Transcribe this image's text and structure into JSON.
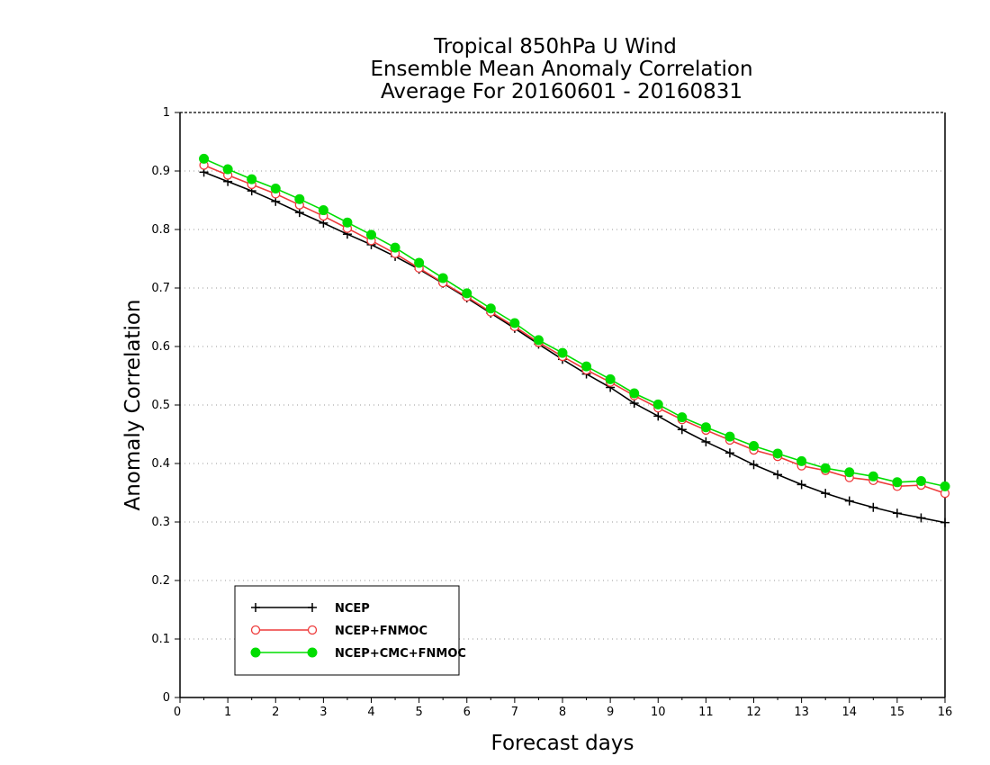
{
  "chart_data": {
    "type": "line",
    "title": [
      "Tropical 850hPa U Wind",
      "Ensemble Mean Anomaly Correlation",
      "Average For 20160601 - 20160831"
    ],
    "xlabel": "Forecast days",
    "ylabel": "Anomaly Correlation",
    "xlim": [
      0,
      16
    ],
    "ylim": [
      0,
      1
    ],
    "x_ticks": [
      0,
      1,
      2,
      3,
      4,
      5,
      6,
      7,
      8,
      9,
      10,
      11,
      12,
      13,
      14,
      15,
      16
    ],
    "y_ticks": [
      0,
      0.1,
      0.2,
      0.3,
      0.4,
      0.5,
      0.6,
      0.7,
      0.8,
      0.9,
      1
    ],
    "x_tick_labels": [
      "0",
      "1",
      "2",
      "3",
      "4",
      "5",
      "6",
      "7",
      "8",
      "9",
      "10",
      "11",
      "12",
      "13",
      "14",
      "15",
      "16"
    ],
    "y_tick_labels": [
      "0",
      "0.1",
      "0.2",
      "0.3",
      "0.4",
      "0.5",
      "0.6",
      "0.7",
      "0.8",
      "0.9",
      "1"
    ],
    "grid": "horizontal dotted",
    "legend_position": "bottom-left",
    "x": [
      0.5,
      1,
      1.5,
      2,
      2.5,
      3,
      3.5,
      4,
      4.5,
      5,
      5.5,
      6,
      6.5,
      7,
      7.5,
      8,
      8.5,
      9,
      9.5,
      10,
      10.5,
      11,
      11.5,
      12,
      12.5,
      13,
      13.5,
      14,
      14.5,
      15,
      15.5,
      16
    ],
    "series": [
      {
        "name": "NCEP",
        "color": "#000000",
        "marker": "plus",
        "values": [
          0.898,
          0.882,
          0.866,
          0.848,
          0.829,
          0.811,
          0.792,
          0.774,
          0.754,
          0.732,
          0.708,
          0.683,
          0.657,
          0.631,
          0.604,
          0.578,
          0.553,
          0.53,
          0.503,
          0.481,
          0.458,
          0.437,
          0.418,
          0.398,
          0.381,
          0.364,
          0.349,
          0.336,
          0.325,
          0.315,
          0.307,
          0.299
        ]
      },
      {
        "name": "NCEP+FNMOC",
        "color": "#ee3a3a",
        "marker": "open-circle",
        "values": [
          0.91,
          0.893,
          0.877,
          0.861,
          0.842,
          0.823,
          0.802,
          0.781,
          0.759,
          0.734,
          0.709,
          0.685,
          0.659,
          0.634,
          0.607,
          0.583,
          0.56,
          0.539,
          0.516,
          0.495,
          0.475,
          0.457,
          0.44,
          0.423,
          0.412,
          0.396,
          0.388,
          0.376,
          0.371,
          0.361,
          0.363,
          0.349
        ]
      },
      {
        "name": "NCEP+CMC+FNMOC",
        "color": "#00dd00",
        "marker": "filled-circle",
        "values": [
          0.921,
          0.903,
          0.886,
          0.87,
          0.852,
          0.833,
          0.812,
          0.791,
          0.769,
          0.743,
          0.717,
          0.691,
          0.665,
          0.64,
          0.611,
          0.589,
          0.566,
          0.544,
          0.52,
          0.501,
          0.479,
          0.462,
          0.446,
          0.43,
          0.417,
          0.404,
          0.392,
          0.385,
          0.378,
          0.368,
          0.37,
          0.361
        ]
      }
    ]
  }
}
